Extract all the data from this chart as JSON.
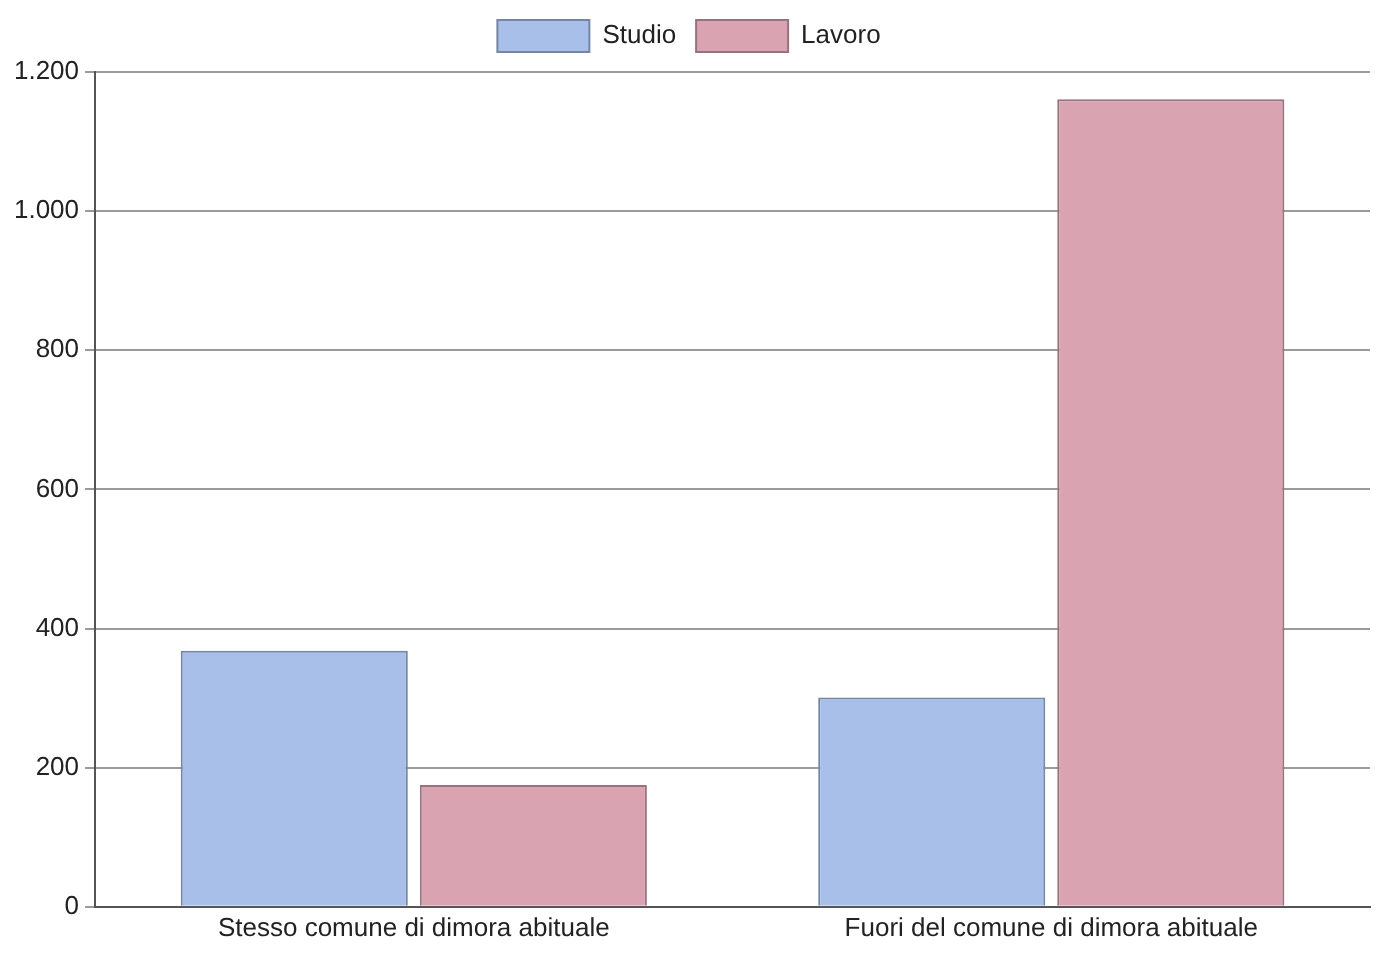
{
  "chart_data": {
    "type": "bar",
    "categories": [
      "Stesso comune di dimora abituale",
      "Fuori del comune di dimora abituale"
    ],
    "series": [
      {
        "name": "Studio",
        "color": "#a7bfe9",
        "values": [
          368,
          301
        ]
      },
      {
        "name": "Lavoro",
        "color": "#d9a3b1",
        "values": [
          175,
          1161
        ]
      }
    ],
    "ylim": [
      0,
      1200
    ],
    "yticks": [
      {
        "value": 0,
        "label": "0"
      },
      {
        "value": 200,
        "label": "200"
      },
      {
        "value": 400,
        "label": "400"
      },
      {
        "value": 600,
        "label": "600"
      },
      {
        "value": 800,
        "label": "800"
      },
      {
        "value": 1000,
        "label": "1.000"
      },
      {
        "value": 1200,
        "label": "1.200"
      }
    ],
    "grid": "y",
    "legend": "top"
  }
}
